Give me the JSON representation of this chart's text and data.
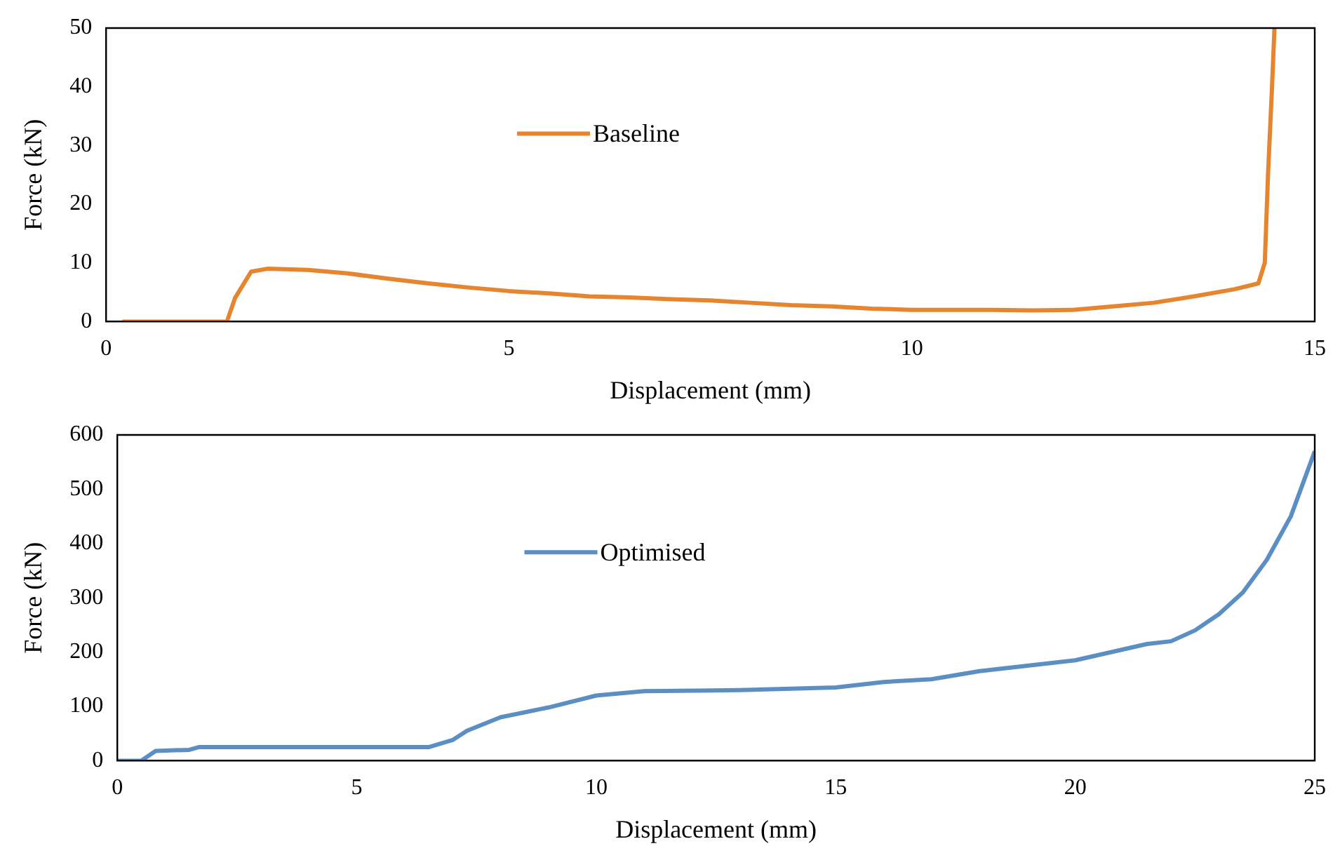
{
  "chart_data": [
    {
      "type": "line",
      "xlabel": "Displacement (mm)",
      "ylabel": "Force (kN)",
      "xlim": [
        0,
        15
      ],
      "xticks": [
        0,
        5,
        10,
        15
      ],
      "ylim": [
        0,
        50
      ],
      "yticks": [
        0,
        10,
        20,
        30,
        40,
        50
      ],
      "grid": false,
      "legend": "top",
      "marker": "none",
      "line_style": "solid",
      "series": [
        {
          "name": "Baseline",
          "color": "#e6852f",
          "x": [
            0.2,
            1.5,
            1.6,
            1.8,
            2.0,
            2.5,
            3,
            3.5,
            4,
            4.5,
            5,
            5.5,
            6,
            6.5,
            7,
            7.5,
            8,
            8.5,
            9,
            9.5,
            10,
            11,
            11.5,
            12,
            12.5,
            13,
            13.5,
            14,
            14.3,
            14.38,
            14.42,
            14.47,
            14.5
          ],
          "values": [
            0,
            0,
            4,
            8.5,
            9,
            8.8,
            8.2,
            7.3,
            6.5,
            5.8,
            5.2,
            4.8,
            4.3,
            4.1,
            3.8,
            3.6,
            3.2,
            2.8,
            2.6,
            2.2,
            2.0,
            2.0,
            1.9,
            2.0,
            2.6,
            3.2,
            4.3,
            5.5,
            6.5,
            10,
            25,
            40,
            50
          ]
        }
      ]
    },
    {
      "type": "line",
      "xlabel": "Displacement (mm)",
      "ylabel": "Force (kN)",
      "xlim": [
        0,
        25
      ],
      "xticks": [
        0,
        5,
        10,
        15,
        20,
        25
      ],
      "ylim": [
        0,
        600
      ],
      "yticks": [
        0,
        100,
        200,
        300,
        400,
        500,
        600
      ],
      "grid": false,
      "legend": "top",
      "marker": "none",
      "line_style": "solid",
      "series": [
        {
          "name": "Optimised",
          "color": "#5b8fc4",
          "x": [
            0,
            0.5,
            0.8,
            1.5,
            1.7,
            3,
            6.5,
            7,
            7.3,
            8,
            9,
            10,
            11,
            13,
            15,
            16,
            17,
            18,
            19,
            20,
            21,
            21.5,
            22,
            22.5,
            23,
            23.5,
            24,
            24.5,
            25
          ],
          "values": [
            0,
            0,
            18,
            20,
            25,
            25,
            25,
            38,
            55,
            80,
            98,
            120,
            128,
            130,
            135,
            145,
            150,
            165,
            175,
            185,
            205,
            215,
            220,
            240,
            270,
            310,
            370,
            450,
            570
          ]
        }
      ]
    }
  ]
}
